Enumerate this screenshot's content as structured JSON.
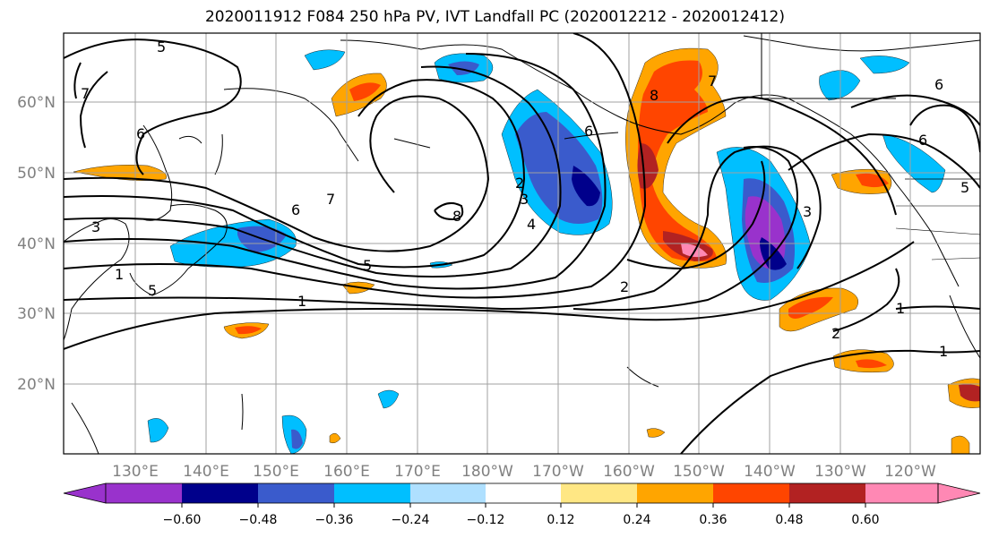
{
  "title": "2020011912 F084 250 hPa PV, IVT Landfall PC (2020012212 - 2020012412)",
  "lat_labels": [
    "60°N",
    "50°N",
    "40°N",
    "30°N",
    "20°N"
  ],
  "lon_labels": [
    "130°E",
    "140°E",
    "150°E",
    "160°E",
    "170°E",
    "180°W",
    "170°W",
    "160°W",
    "150°W",
    "140°W",
    "130°W",
    "120°W"
  ],
  "contour_labels": [
    "5",
    "7",
    "6",
    "7",
    "6",
    "5",
    "3",
    "1",
    "1",
    "8",
    "8",
    "6",
    "2",
    "3",
    "4",
    "6",
    "7",
    "3",
    "2",
    "6",
    "5",
    "1",
    "2",
    "1",
    "5"
  ],
  "colorbar": {
    "tick_labels": [
      "-0.60",
      "-0.48",
      "-0.36",
      "-0.24",
      "-0.12",
      "0.12",
      "0.24",
      "0.36",
      "0.48",
      "0.60"
    ],
    "colors": [
      "#9932cc",
      "#00008b",
      "#3a5bcc",
      "#00bfff",
      "#afe0ff",
      "#ffffff",
      "#ffe784",
      "#ffa500",
      "#ff4500",
      "#b22222",
      "#ff88b4"
    ]
  },
  "colors": {
    "text_gray": "#808080",
    "grid": "#a0a0a0",
    "land": "#000000"
  }
}
